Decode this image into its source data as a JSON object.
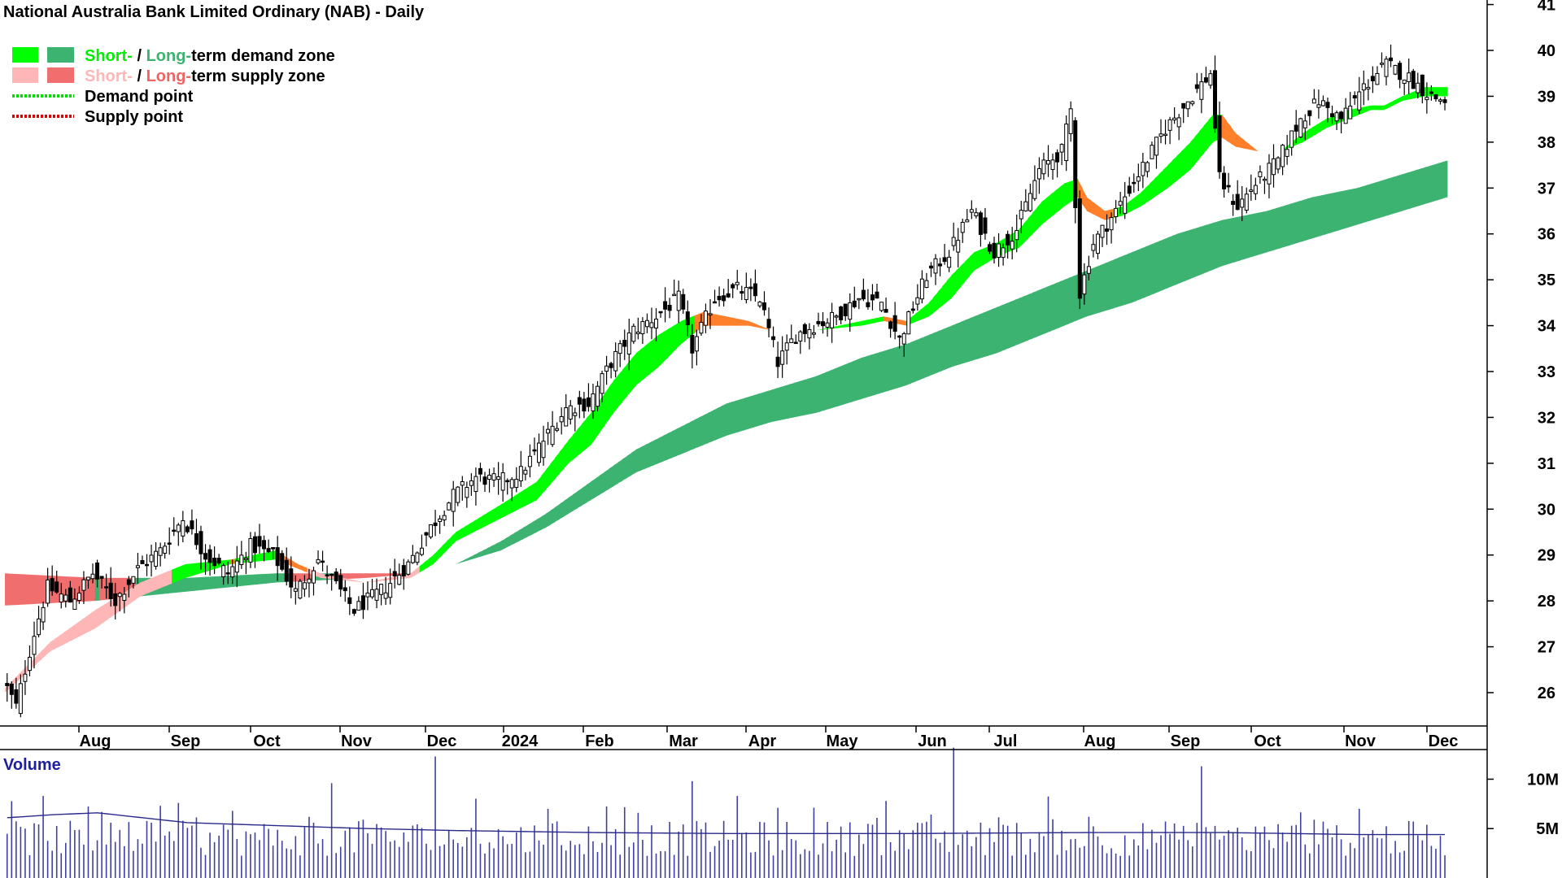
{
  "chart_data": {
    "type": "candlestick",
    "title": "National Australia Bank Limited Ordinary (NAB) - Daily",
    "legend": [
      {
        "parts": [
          {
            "text": "Short-",
            "color": "#00ee00"
          },
          {
            "text": " / ",
            "color": "#000000"
          },
          {
            "text": "Long-",
            "color": "#3cb371"
          },
          {
            "text": "term demand zone",
            "color": "#000000"
          }
        ],
        "swatches": [
          "#00ff00",
          "#3cb371"
        ],
        "style": "box"
      },
      {
        "parts": [
          {
            "text": "Short-",
            "color": "#ffb6b6"
          },
          {
            "text": " / ",
            "color": "#000000"
          },
          {
            "text": "Long-",
            "color": "#f06464"
          },
          {
            "text": "term supply zone",
            "color": "#000000"
          }
        ],
        "swatches": [
          "#ffb6b6",
          "#f06e6e"
        ],
        "style": "box"
      },
      {
        "parts": [
          {
            "text": "Demand point",
            "color": "#000000"
          }
        ],
        "swatches": [
          "#00dd00"
        ],
        "style": "dotted"
      },
      {
        "parts": [
          {
            "text": "Supply point",
            "color": "#000000"
          }
        ],
        "swatches": [
          "#dd0000"
        ],
        "style": "dotted"
      }
    ],
    "x_ticks": [
      "Aug",
      "Sep",
      "Oct",
      "Nov",
      "Dec",
      "2024",
      "Feb",
      "Mar",
      "Apr",
      "May",
      "Jun",
      "Jul",
      "Aug",
      "Sep",
      "Oct",
      "Nov",
      "Dec"
    ],
    "y_ticks": [
      26,
      27,
      28,
      29,
      30,
      31,
      32,
      33,
      34,
      35,
      36,
      37,
      38,
      39,
      40,
      41
    ],
    "ylim": [
      25.3,
      41.2
    ],
    "grid": false,
    "price_anchors": [
      [
        0,
        26.3
      ],
      [
        3,
        25.7
      ],
      [
        7,
        27.3
      ],
      [
        10,
        28.3
      ],
      [
        15,
        28.0
      ],
      [
        20,
        28.6
      ],
      [
        25,
        28.0
      ],
      [
        30,
        28.7
      ],
      [
        35,
        29.1
      ],
      [
        40,
        29.8
      ],
      [
        45,
        29.0
      ],
      [
        50,
        28.6
      ],
      [
        55,
        29.2
      ],
      [
        60,
        29.0
      ],
      [
        65,
        28.2
      ],
      [
        70,
        28.9
      ],
      [
        75,
        28.2
      ],
      [
        78,
        27.8
      ],
      [
        85,
        28.3
      ],
      [
        90,
        28.8
      ],
      [
        95,
        29.6
      ],
      [
        100,
        30.3
      ],
      [
        105,
        30.7
      ],
      [
        110,
        30.6
      ],
      [
        115,
        30.8
      ],
      [
        120,
        31.5
      ],
      [
        125,
        32.2
      ],
      [
        130,
        32.3
      ],
      [
        135,
        33.2
      ],
      [
        140,
        33.9
      ],
      [
        145,
        34.2
      ],
      [
        150,
        34.6
      ],
      [
        153,
        33.5
      ],
      [
        158,
        34.6
      ],
      [
        163,
        34.8
      ],
      [
        168,
        34.6
      ],
      [
        172,
        33.2
      ],
      [
        176,
        33.8
      ],
      [
        180,
        34.0
      ],
      [
        185,
        34.2
      ],
      [
        190,
        34.6
      ],
      [
        195,
        34.5
      ],
      [
        199,
        33.7
      ],
      [
        205,
        35.1
      ],
      [
        210,
        35.6
      ],
      [
        215,
        36.5
      ],
      [
        220,
        35.6
      ],
      [
        225,
        36.1
      ],
      [
        230,
        37.4
      ],
      [
        235,
        37.8
      ],
      [
        237,
        38.7
      ],
      [
        239,
        34.7
      ],
      [
        242,
        35.8
      ],
      [
        247,
        36.5
      ],
      [
        252,
        37.3
      ],
      [
        258,
        38.3
      ],
      [
        263,
        38.9
      ],
      [
        268,
        39.5
      ],
      [
        270,
        37.2
      ],
      [
        274,
        36.6
      ],
      [
        278,
        37.1
      ],
      [
        283,
        37.6
      ],
      [
        288,
        38.5
      ],
      [
        292,
        38.9
      ],
      [
        297,
        38.5
      ],
      [
        302,
        39.2
      ],
      [
        307,
        39.7
      ],
      [
        312,
        39.4
      ],
      [
        317,
        39.0
      ],
      [
        320,
        38.9
      ]
    ],
    "short_zone_anchors": [
      [
        0,
        26.1,
        26.0
      ],
      [
        10,
        27.1,
        26.9
      ],
      [
        20,
        27.8,
        27.4
      ],
      [
        30,
        28.4,
        28.1
      ],
      [
        40,
        28.8,
        28.5
      ],
      [
        50,
        28.9,
        28.8
      ],
      [
        60,
        29.1,
        28.9
      ],
      [
        65,
        28.8,
        28.7
      ],
      [
        70,
        28.6,
        28.5
      ],
      [
        80,
        28.4,
        28.4
      ],
      [
        90,
        28.6,
        28.5
      ],
      [
        95,
        29.0,
        28.8
      ],
      [
        100,
        29.5,
        29.3
      ],
      [
        110,
        30.1,
        29.8
      ],
      [
        118,
        30.6,
        30.2
      ],
      [
        125,
        31.5,
        31.0
      ],
      [
        130,
        32.1,
        31.4
      ],
      [
        135,
        32.8,
        32.1
      ],
      [
        140,
        33.4,
        32.7
      ],
      [
        145,
        33.8,
        33.1
      ],
      [
        150,
        34.1,
        33.6
      ],
      [
        155,
        34.3,
        34.0
      ],
      [
        160,
        34.2,
        34.0
      ],
      [
        165,
        34.1,
        34.0
      ],
      [
        170,
        33.9,
        33.9
      ],
      [
        180,
        33.9,
        33.9
      ],
      [
        190,
        34.1,
        34.0
      ],
      [
        195,
        34.2,
        34.1
      ],
      [
        200,
        34.1,
        34.0
      ],
      [
        205,
        34.5,
        34.2
      ],
      [
        210,
        35.1,
        34.6
      ],
      [
        215,
        35.6,
        35.2
      ],
      [
        220,
        35.8,
        35.5
      ],
      [
        225,
        36.1,
        35.7
      ],
      [
        230,
        36.7,
        36.2
      ],
      [
        235,
        37.1,
        36.6
      ],
      [
        238,
        37.2,
        36.8
      ],
      [
        240,
        36.8,
        36.5
      ],
      [
        244,
        36.5,
        36.3
      ],
      [
        248,
        36.6,
        36.4
      ],
      [
        252,
        36.9,
        36.6
      ],
      [
        258,
        37.5,
        37.0
      ],
      [
        263,
        38.0,
        37.4
      ],
      [
        268,
        38.6,
        38.0
      ],
      [
        270,
        38.6,
        38.1
      ],
      [
        273,
        38.2,
        37.9
      ],
      [
        278,
        37.8,
        37.8
      ],
      [
        283,
        37.8,
        37.8
      ],
      [
        288,
        38.2,
        38.0
      ],
      [
        293,
        38.5,
        38.3
      ],
      [
        298,
        38.7,
        38.5
      ],
      [
        303,
        38.8,
        38.7
      ],
      [
        306,
        38.8,
        38.7
      ],
      [
        310,
        39.0,
        38.9
      ],
      [
        315,
        39.2,
        39.0
      ],
      [
        320,
        39.2,
        39.0
      ]
    ],
    "long_zone_anchors": [
      [
        0,
        28.6,
        27.9
      ],
      [
        20,
        28.5,
        28.0
      ],
      [
        40,
        28.5,
        28.2
      ],
      [
        60,
        28.6,
        28.4
      ],
      [
        80,
        28.6,
        28.5
      ],
      [
        92,
        28.6,
        28.6
      ],
      [
        100,
        28.8,
        28.8
      ],
      [
        110,
        29.3,
        29.1
      ],
      [
        120,
        29.9,
        29.6
      ],
      [
        130,
        30.6,
        30.2
      ],
      [
        140,
        31.3,
        30.8
      ],
      [
        150,
        31.8,
        31.2
      ],
      [
        160,
        32.3,
        31.6
      ],
      [
        170,
        32.6,
        31.9
      ],
      [
        180,
        32.9,
        32.1
      ],
      [
        190,
        33.3,
        32.4
      ],
      [
        200,
        33.6,
        32.7
      ],
      [
        210,
        34.0,
        33.1
      ],
      [
        220,
        34.4,
        33.4
      ],
      [
        230,
        34.8,
        33.8
      ],
      [
        240,
        35.2,
        34.2
      ],
      [
        250,
        35.6,
        34.5
      ],
      [
        260,
        36.0,
        34.9
      ],
      [
        270,
        36.3,
        35.3
      ],
      [
        280,
        36.5,
        35.6
      ],
      [
        290,
        36.8,
        35.9
      ],
      [
        300,
        37.0,
        36.2
      ],
      [
        310,
        37.3,
        36.5
      ],
      [
        320,
        37.6,
        36.8
      ]
    ],
    "volume_panel": {
      "label": "Volume",
      "y_ticks": [
        "10M",
        "5M"
      ],
      "tick_values": [
        10,
        5
      ],
      "ylim": [
        0,
        13
      ],
      "avg_anchors": [
        [
          0,
          6.1
        ],
        [
          10,
          6.4
        ],
        [
          20,
          6.6
        ],
        [
          30,
          6.1
        ],
        [
          40,
          5.6
        ],
        [
          60,
          5.3
        ],
        [
          80,
          5.0
        ],
        [
          100,
          4.8
        ],
        [
          130,
          4.6
        ],
        [
          160,
          4.5
        ],
        [
          200,
          4.5
        ],
        [
          240,
          4.6
        ],
        [
          270,
          4.6
        ],
        [
          300,
          4.4
        ],
        [
          320,
          4.4
        ]
      ],
      "spikes": [
        [
          8,
          8.3
        ],
        [
          38,
          7.6
        ],
        [
          50,
          6.8
        ],
        [
          72,
          9.6
        ],
        [
          95,
          12.3
        ],
        [
          120,
          7.0
        ],
        [
          140,
          6.6
        ],
        [
          152,
          9.8
        ],
        [
          162,
          8.3
        ],
        [
          195,
          7.8
        ],
        [
          210,
          13.2
        ],
        [
          240,
          6.2
        ],
        [
          265,
          11.3
        ],
        [
          290,
          5.9
        ],
        [
          300,
          7.0
        ]
      ]
    },
    "colors": {
      "short_demand": "#00ff00",
      "long_demand": "#3cb371",
      "short_supply": "#ffb6b6",
      "long_supply": "#f06e6e",
      "transition": "#ff7f2a",
      "volume": "#4040a0",
      "candle": "#000000"
    }
  }
}
